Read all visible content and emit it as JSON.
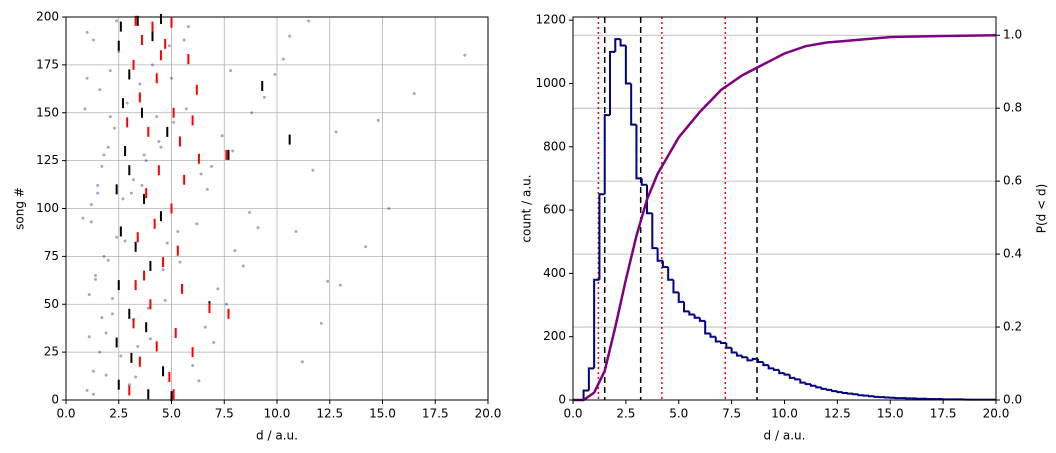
{
  "chart_data": [
    {
      "type": "scatter",
      "xlabel": "d / a.u.",
      "ylabel": "song #",
      "grid": "both",
      "xlim": [
        0,
        20
      ],
      "ylim": [
        0,
        200
      ],
      "xticks": [
        {
          "value": 0,
          "label": "0.0"
        },
        {
          "value": 2.5,
          "label": "2.5"
        },
        {
          "value": 5,
          "label": "5.0"
        },
        {
          "value": 7.5,
          "label": "7.5"
        },
        {
          "value": 10,
          "label": "10.0"
        },
        {
          "value": 12.5,
          "label": "12.5"
        },
        {
          "value": 15,
          "label": "15.0"
        },
        {
          "value": 17.5,
          "label": "17.5"
        },
        {
          "value": 20,
          "label": "20.0"
        }
      ],
      "yticks": [
        0,
        25,
        50,
        75,
        100,
        125,
        150,
        175,
        200
      ],
      "series": [
        {
          "marker": "point",
          "color": "#000080",
          "x": [
            1.0,
            1.3,
            1.6,
            1.9,
            2.2,
            1.1,
            1.4,
            1.8,
            2.4,
            0.8,
            2.7,
            3.2,
            3.8,
            4.4,
            5.1,
            2.9,
            3.5,
            4.1,
            4.9,
            5.8,
            6.3,
            7.0,
            7.6,
            8.4,
            9.1,
            6.7,
            7.9,
            8.8,
            9.9,
            10.6,
            11.2,
            12.1,
            13.0,
            14.2,
            15.3,
            11.7,
            12.8,
            16.5,
            18.9,
            10.9,
            1.2,
            1.5,
            1.7,
            2.0,
            2.3,
            0.9,
            1.6,
            2.1,
            2.5,
            1.0,
            3.0,
            3.4,
            3.9,
            4.6,
            5.3,
            3.1,
            3.7,
            4.3,
            5.0,
            5.6,
            6.0,
            6.6,
            7.2,
            8.0,
            8.7,
            6.4,
            7.4,
            9.4,
            10.3,
            11.5,
            1.3,
            1.9,
            2.6,
            1.1,
            1.7,
            2.2,
            1.4,
            2.0,
            2.8,
            1.2,
            3.3,
            4.0,
            4.7,
            5.4,
            6.2,
            3.6,
            4.5,
            5.7,
            7.8,
            12.4,
            1.5,
            1.8,
            2.1,
            1.0,
            1.3,
            2.4,
            3.2,
            4.8,
            6.9,
            14.8
          ],
          "values": [
            5,
            15,
            25,
            35,
            45,
            55,
            65,
            75,
            85,
            95,
            105,
            115,
            125,
            135,
            145,
            155,
            165,
            175,
            185,
            195,
            10,
            30,
            50,
            70,
            90,
            110,
            130,
            150,
            170,
            190,
            20,
            40,
            60,
            80,
            100,
            120,
            140,
            160,
            180,
            88,
            102,
            112,
            122,
            132,
            142,
            152,
            162,
            172,
            182,
            192,
            8,
            28,
            48,
            68,
            88,
            108,
            128,
            148,
            168,
            188,
            18,
            38,
            58,
            78,
            98,
            118,
            138,
            158,
            178,
            198,
            3,
            13,
            23,
            33,
            43,
            53,
            63,
            73,
            83,
            93,
            12,
            32,
            52,
            72,
            92,
            112,
            132,
            152,
            172,
            62,
            108,
            128,
            148,
            168,
            188,
            198,
            42,
            82,
            122,
            146
          ]
        },
        {
          "marker": "vline",
          "color": "#000000",
          "x": [
            2.6,
            3.4,
            4.5,
            2.5,
            3.0,
            4.1,
            9.3,
            2.7,
            3.6,
            4.8,
            10.6,
            7.7,
            3.0,
            2.4,
            3.7,
            4.5,
            2.6,
            3.3,
            4.0,
            6.8,
            2.5,
            3.0,
            3.8,
            2.4,
            3.1,
            4.6,
            2.5,
            3.9,
            5.0,
            2.8
          ],
          "values": [
            195,
            198,
            199,
            185,
            170,
            190,
            164,
            155,
            150,
            140,
            136,
            128,
            120,
            110,
            105,
            96,
            88,
            80,
            70,
            49,
            60,
            45,
            38,
            30,
            22,
            15,
            8,
            3,
            2,
            130
          ]
        },
        {
          "marker": "vline",
          "color": "#ff0000",
          "x": [
            3.3,
            4.1,
            5.0,
            3.6,
            4.7,
            5.8,
            3.2,
            4.3,
            6.2,
            3.5,
            5.1,
            6.0,
            3.9,
            5.4,
            7.6,
            6.3,
            4.4,
            5.6,
            3.8,
            5.0,
            4.2,
            3.4,
            5.3,
            4.6,
            3.7,
            5.5,
            6.8,
            7.7,
            4.0,
            3.2,
            5.2,
            6.0,
            3.5,
            4.9,
            3.0,
            5.1,
            4.3,
            2.9,
            3.3,
            4.5
          ],
          "values": [
            198,
            195,
            197,
            188,
            186,
            178,
            175,
            168,
            162,
            158,
            150,
            146,
            140,
            135,
            128,
            126,
            120,
            115,
            108,
            100,
            92,
            85,
            78,
            72,
            65,
            58,
            48,
            45,
            50,
            40,
            35,
            25,
            20,
            12,
            5,
            3,
            28,
            145,
            60,
            180
          ]
        }
      ]
    },
    {
      "type": "histogram",
      "xlabel": "d / a.u.",
      "ylabel": "count / a.u.",
      "y2label": "P(d < d)",
      "grid": "y2",
      "xlim": [
        0,
        20
      ],
      "ylim": [
        0,
        1210
      ],
      "y2lim": [
        0,
        1.05
      ],
      "xticks": [
        {
          "value": 0,
          "label": "0.0"
        },
        {
          "value": 2.5,
          "label": "2.5"
        },
        {
          "value": 5,
          "label": "5.0"
        },
        {
          "value": 7.5,
          "label": "7.5"
        },
        {
          "value": 10,
          "label": "10.0"
        },
        {
          "value": 12.5,
          "label": "12.5"
        },
        {
          "value": 15,
          "label": "15.0"
        },
        {
          "value": 17.5,
          "label": "17.5"
        },
        {
          "value": 20,
          "label": "20.0"
        }
      ],
      "yticks": [
        0,
        200,
        400,
        600,
        800,
        1000,
        1200
      ],
      "y2ticks": [
        {
          "value": 0,
          "label": "0.0"
        },
        {
          "value": 0.2,
          "label": "0.2"
        },
        {
          "value": 0.4,
          "label": "0.4"
        },
        {
          "value": 0.6,
          "label": "0.6"
        },
        {
          "value": 0.8,
          "label": "0.8"
        },
        {
          "value": 1.0,
          "label": "1.0"
        }
      ],
      "series": [
        {
          "type": "step",
          "color": "#000080",
          "bins": [
            0,
            0.25,
            0.5,
            0.75,
            1,
            1.25,
            1.5,
            1.75,
            2,
            2.25,
            2.5,
            2.75,
            3,
            3.25,
            3.5,
            3.75,
            4,
            4.25,
            4.5,
            4.75,
            5,
            5.25,
            5.5,
            5.75,
            6,
            6.25,
            6.5,
            6.75,
            7,
            7.25,
            7.5,
            7.75,
            8,
            8.25,
            8.5,
            8.75,
            9,
            9.25,
            9.5,
            9.75,
            10,
            10.25,
            10.5,
            10.75,
            11,
            11.25,
            11.5,
            11.75,
            12,
            12.25,
            12.5,
            12.75,
            13,
            13.25,
            13.5,
            13.75,
            14,
            14.25,
            14.5,
            14.75,
            15,
            15.25,
            15.5,
            15.75,
            16,
            16.25,
            16.5,
            16.75,
            17,
            17.25,
            17.5,
            17.75,
            18,
            18.25,
            18.5,
            18.75,
            19,
            19.25,
            19.5,
            19.75,
            20
          ],
          "values": [
            0,
            0,
            30,
            100,
            380,
            650,
            900,
            1100,
            1140,
            1120,
            1000,
            870,
            700,
            680,
            590,
            480,
            440,
            420,
            380,
            340,
            310,
            280,
            270,
            260,
            250,
            210,
            200,
            185,
            180,
            165,
            150,
            140,
            135,
            125,
            130,
            120,
            110,
            100,
            95,
            85,
            80,
            70,
            65,
            55,
            50,
            45,
            40,
            35,
            32,
            28,
            25,
            22,
            20,
            18,
            15,
            14,
            12,
            10,
            9,
            8,
            7,
            6,
            6,
            5,
            5,
            4,
            4,
            3,
            3,
            3,
            2,
            2,
            2,
            2,
            1,
            1,
            1,
            1,
            1,
            1
          ]
        },
        {
          "type": "line",
          "color": "#800080",
          "axis": "y2",
          "x": [
            0,
            0.5,
            1,
            1.5,
            2,
            2.5,
            3,
            3.5,
            4,
            4.5,
            5,
            6,
            7,
            8,
            9,
            10,
            11,
            12,
            13,
            14,
            15,
            17.5,
            20
          ],
          "values": [
            0,
            0,
            0.02,
            0.08,
            0.2,
            0.33,
            0.45,
            0.55,
            0.62,
            0.67,
            0.72,
            0.79,
            0.85,
            0.89,
            0.92,
            0.95,
            0.97,
            0.98,
            0.985,
            0.99,
            0.995,
            0.998,
            1.0
          ]
        }
      ],
      "vlines": [
        {
          "x": 1.5,
          "color": "#000000",
          "style": "dashed"
        },
        {
          "x": 3.2,
          "color": "#000000",
          "style": "dashed"
        },
        {
          "x": 8.7,
          "color": "#000000",
          "style": "dashed"
        },
        {
          "x": 1.2,
          "color": "#ff0000",
          "style": "dotted"
        },
        {
          "x": 4.2,
          "color": "#ff0000",
          "style": "dotted"
        },
        {
          "x": 7.2,
          "color": "#ff0000",
          "style": "dotted"
        }
      ]
    }
  ]
}
